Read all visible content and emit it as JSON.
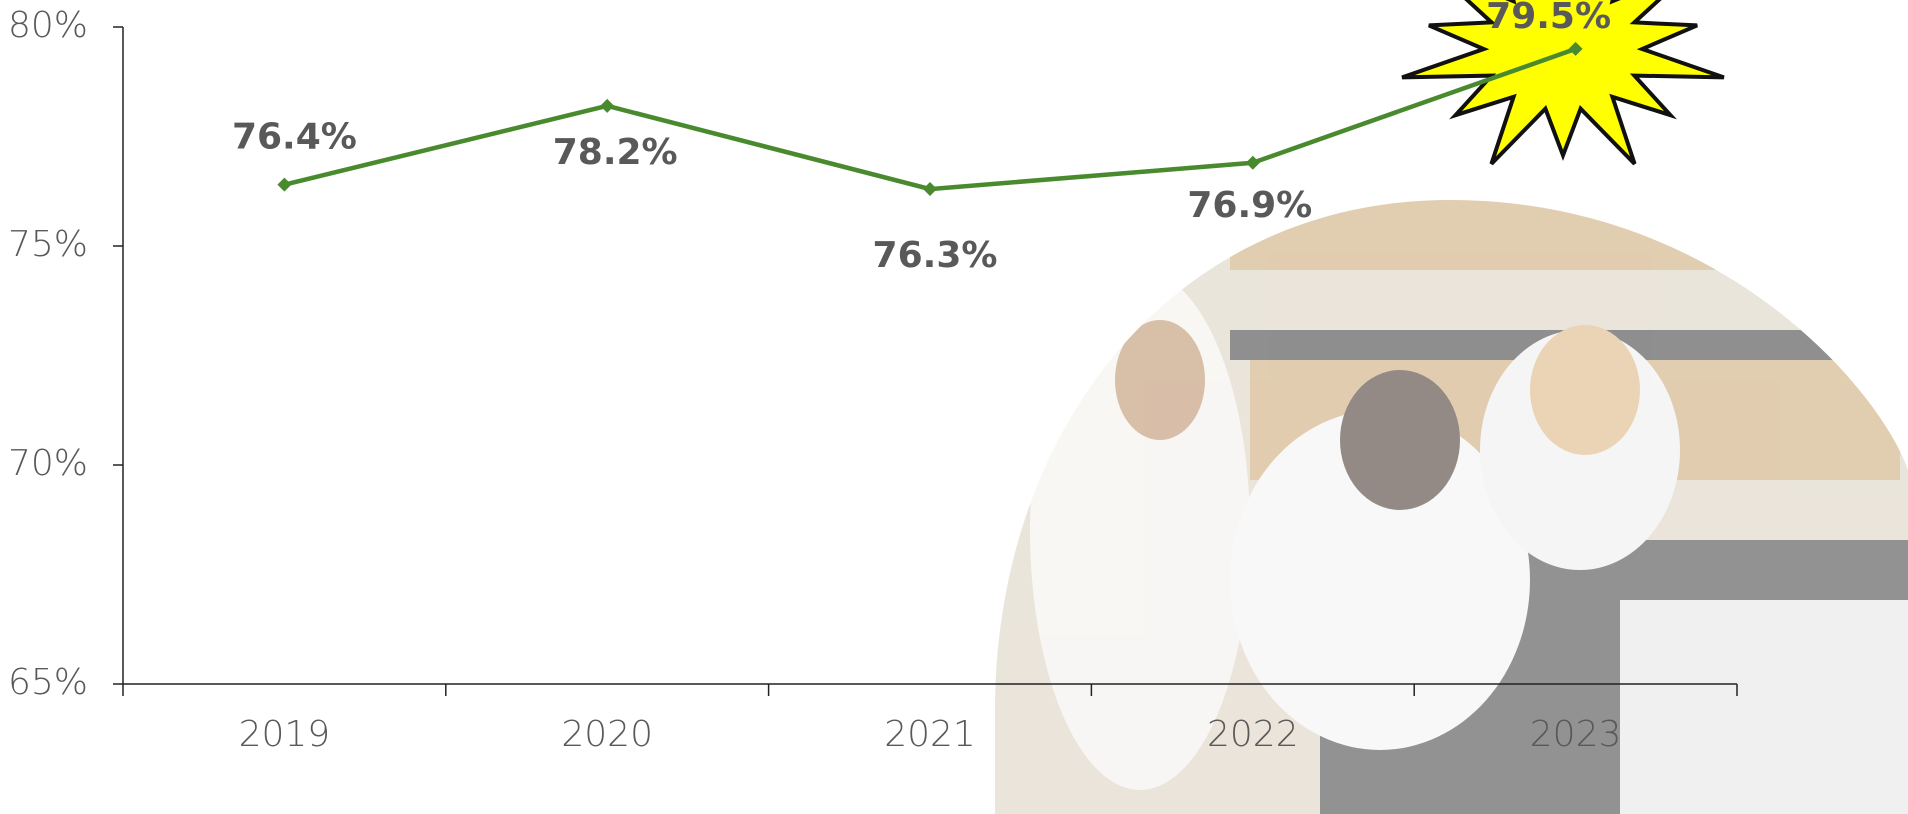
{
  "chart_data": {
    "type": "line",
    "categories": [
      "2019",
      "2020",
      "2021",
      "2022",
      "2023"
    ],
    "values": [
      76.4,
      78.2,
      76.3,
      76.9,
      79.5
    ],
    "value_labels": [
      "76.4%",
      "78.2%",
      "76.3%",
      "76.9%",
      "79.5%"
    ],
    "color": "#4a8a2e",
    "ylim": [
      65,
      80
    ],
    "yticks": [
      {
        "value": 65,
        "label": "65%"
      },
      {
        "value": 70,
        "label": "70%"
      },
      {
        "value": 75,
        "label": "75%"
      },
      {
        "value": 80,
        "label": "80%"
      }
    ]
  }
}
